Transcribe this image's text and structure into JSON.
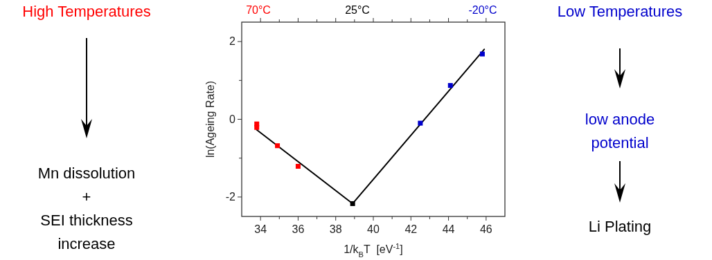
{
  "chart_data": {
    "type": "scatter",
    "xlabel": "1/k$_{B}$T  [eV$^{-1}$]",
    "ylabel": "ln(Ageing Rate)",
    "xlim": [
      33,
      47
    ],
    "xticks": [
      34,
      {
        "value": 35,
        "label": null
      },
      36,
      {
        "value": 37,
        "label": null
      },
      38,
      {
        "value": 39,
        "label": null
      },
      40,
      {
        "value": 41,
        "label": null
      },
      42,
      {
        "value": 43,
        "label": null
      },
      44,
      {
        "value": 45,
        "label": null
      },
      46
    ],
    "ylim": [
      -2.5,
      2.5
    ],
    "yticks": [
      -2,
      {
        "value": -1,
        "label": null
      },
      0,
      {
        "value": 1,
        "label": null
      },
      2
    ],
    "marker": "square",
    "grid": false,
    "series": [
      {
        "color": "#ff0000",
        "x": [
          33.8,
          33.8,
          34.9,
          36.0
        ],
        "values": [
          -0.12,
          -0.21,
          -0.68,
          -1.21
        ]
      },
      {
        "color": "#000000",
        "x": [
          38.9
        ],
        "values": [
          -2.17
        ]
      },
      {
        "color": "#0000cc",
        "x": [
          42.5,
          44.1,
          45.8
        ],
        "values": [
          -0.1,
          0.87,
          1.68
        ]
      },
      {
        "type": "line",
        "marker": "none",
        "color": "#000000",
        "x": [
          33.8,
          38.9
        ],
        "values": [
          -0.27,
          -2.17
        ]
      },
      {
        "type": "line",
        "marker": "none",
        "color": "#000000",
        "x": [
          38.9,
          45.9
        ],
        "values": [
          -2.17,
          1.8
        ]
      }
    ],
    "annotations": [
      "High Temperatures",
      "Mn dissolution",
      "+",
      "SEI thickness increase",
      "Low Temperatures",
      "low anode potential",
      "Li Plating",
      "70°C",
      "25°C",
      "-20°C"
    ]
  }
}
